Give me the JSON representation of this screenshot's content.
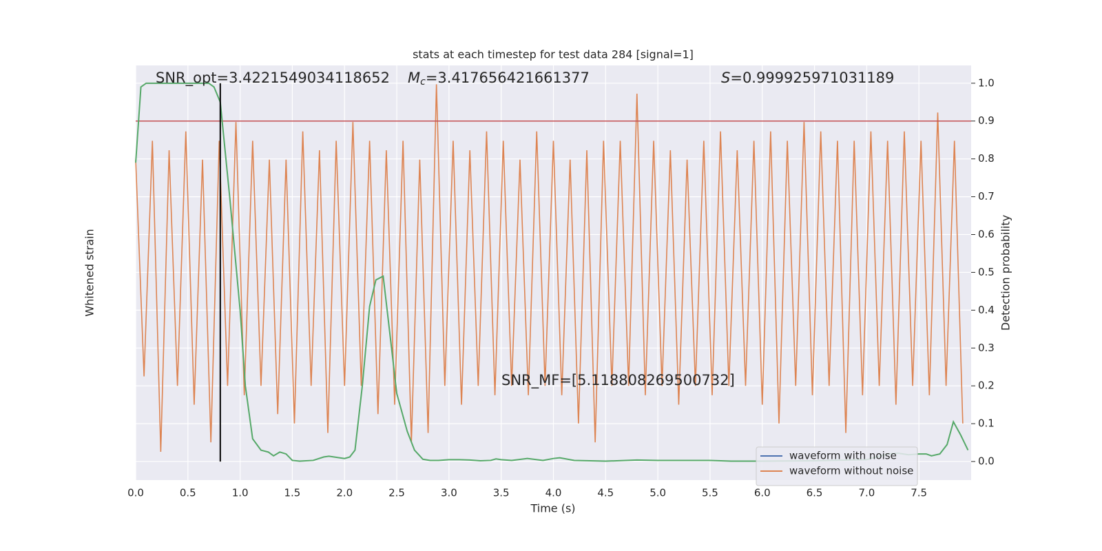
{
  "chart_data": {
    "type": "line",
    "title": "stats at each timestep for test data 284 [signal=1]",
    "xlabel": "Time (s)",
    "ylabel": "Whitened strain",
    "y2label": "Detection probability",
    "annotations": {
      "snr_opt": "SNR_opt=3.4221549034118652",
      "chirp_mass": {
        "symbol": "M",
        "subscript": "c",
        "text": "=3.417656421661377"
      },
      "score": {
        "symbol": "S",
        "text": "=0.999925971031189"
      },
      "snr_mf": "SNR_MF=[5.118808269500732]"
    },
    "xlim": [
      0,
      8
    ],
    "xticks": [
      {
        "value": 0,
        "label": "0.0"
      },
      0.5,
      {
        "value": 1,
        "label": "1.0"
      },
      1.5,
      {
        "value": 2,
        "label": "2.0"
      },
      2.5,
      {
        "value": 3,
        "label": "3.0"
      },
      3.5,
      {
        "value": 4,
        "label": "4.0"
      },
      4.5,
      {
        "value": 5,
        "label": "5.0"
      },
      5.5,
      {
        "value": 6,
        "label": "6.0"
      },
      6.5,
      {
        "value": 7,
        "label": "7.0"
      },
      7.5
    ],
    "ylim": [
      -1.1,
      1.1
    ],
    "y2lim": [
      -0.049,
      1.047
    ],
    "y2ticks": [
      {
        "value": 0,
        "label": "0.0"
      },
      0.1,
      0.2,
      0.3,
      0.4,
      0.5,
      0.6,
      0.7,
      0.8,
      0.9,
      {
        "value": 1,
        "label": "1.0"
      }
    ],
    "grid": true,
    "legend": "lower right",
    "threshold": {
      "value": 0.9,
      "color": "#c44e52"
    },
    "vline": {
      "value": 0.81,
      "color": "#000000"
    },
    "series": [
      {
        "name": "waveform with noise",
        "color": "#4c72b0"
      },
      {
        "name": "waveform without noise",
        "color": "#dd8452",
        "x": [
          0,
          0.08,
          0.16,
          0.24,
          0.32,
          0.4,
          0.48,
          0.56,
          0.64,
          0.72,
          0.8,
          0.88,
          0.96,
          1.04,
          1.12,
          1.2,
          1.28,
          1.36,
          1.44,
          1.52,
          1.6,
          1.68,
          1.76,
          1.84,
          1.92,
          2,
          2.08,
          2.16,
          2.24,
          2.32,
          2.4,
          2.48,
          2.56,
          2.64,
          2.72,
          2.8,
          2.88,
          2.96,
          3.04,
          3.12,
          3.2,
          3.28,
          3.36,
          3.44,
          3.52,
          3.6,
          3.68,
          3.76,
          3.84,
          3.92,
          4,
          4.08,
          4.16,
          4.24,
          4.32,
          4.4,
          4.48,
          4.56,
          4.64,
          4.72,
          4.8,
          4.88,
          4.96,
          5.04,
          5.12,
          5.2,
          5.28,
          5.36,
          5.44,
          5.52,
          5.6,
          5.68,
          5.76,
          5.84,
          5.92,
          6,
          6.08,
          6.16,
          6.24,
          6.32,
          6.4,
          6.48,
          6.56,
          6.64,
          6.72,
          6.8,
          6.88,
          6.96,
          7.04,
          7.12,
          7.2,
          7.28,
          7.36,
          7.44,
          7.52,
          7.6,
          7.68,
          7.76,
          7.84,
          7.92
        ],
        "values": [
          0.6,
          -0.55,
          0.7,
          -0.95,
          0.65,
          -0.6,
          0.75,
          -0.7,
          0.6,
          -0.9,
          0.7,
          -0.6,
          0.8,
          -0.65,
          0.7,
          -0.6,
          0.6,
          -0.75,
          0.6,
          -0.8,
          0.75,
          -0.6,
          0.65,
          -0.85,
          0.7,
          -0.6,
          0.8,
          -0.6,
          0.7,
          -0.75,
          0.65,
          -0.7,
          0.7,
          -0.9,
          0.6,
          -0.85,
          1,
          -0.6,
          0.7,
          -0.7,
          0.65,
          -0.6,
          0.75,
          -0.65,
          0.7,
          -0.6,
          0.6,
          -0.65,
          0.75,
          -0.6,
          0.7,
          -0.65,
          0.6,
          -0.8,
          0.65,
          -0.9,
          0.7,
          -0.6,
          0.7,
          -0.6,
          0.95,
          -0.65,
          0.7,
          -0.6,
          0.65,
          -0.7,
          0.6,
          -0.6,
          0.7,
          -0.65,
          0.75,
          -0.6,
          0.65,
          -0.6,
          0.7,
          -0.7,
          0.75,
          -0.8,
          0.7,
          -0.6,
          0.8,
          -0.65,
          0.75,
          -0.6,
          0.7,
          -0.85,
          0.7,
          -0.65,
          0.75,
          -0.6,
          0.7,
          -0.7,
          0.75,
          -0.6,
          0.7,
          -0.65,
          0.85,
          -0.6,
          0.7,
          -0.8
        ]
      },
      {
        "color": "#55a868",
        "axis": "y2",
        "x": [
          0,
          0.05,
          0.1,
          0.2,
          0.3,
          0.4,
          0.5,
          0.6,
          0.7,
          0.75,
          0.81,
          0.9,
          1,
          1.05,
          1.12,
          1.2,
          1.27,
          1.32,
          1.38,
          1.44,
          1.5,
          1.57,
          1.7,
          1.8,
          1.85,
          1.9,
          2,
          2.05,
          2.1,
          2.17,
          2.24,
          2.3,
          2.37,
          2.45,
          2.5,
          2.6,
          2.67,
          2.75,
          2.82,
          2.9,
          3,
          3.1,
          3.2,
          3.3,
          3.4,
          3.45,
          3.5,
          3.6,
          3.75,
          3.9,
          4,
          4.06,
          4.2,
          4.5,
          4.8,
          5,
          5.5,
          5.7,
          6,
          6.5,
          7,
          7.2,
          7.3,
          7.4,
          7.5,
          7.57,
          7.62,
          7.7,
          7.77,
          7.83,
          7.9,
          7.97
        ],
        "values": [
          0.79,
          0.99,
          1,
          1,
          1,
          1,
          1,
          1,
          1,
          0.99,
          0.95,
          0.7,
          0.4,
          0.2,
          0.06,
          0.03,
          0.025,
          0.015,
          0.025,
          0.02,
          0.003,
          0.001,
          0.003,
          0.012,
          0.014,
          0.012,
          0.008,
          0.012,
          0.03,
          0.2,
          0.41,
          0.48,
          0.49,
          0.3,
          0.18,
          0.08,
          0.03,
          0.006,
          0.003,
          0.003,
          0.005,
          0.005,
          0.004,
          0.002,
          0.003,
          0.007,
          0.005,
          0.003,
          0.008,
          0.003,
          0.008,
          0.01,
          0.003,
          0.001,
          0.004,
          0.003,
          0.003,
          0.001,
          0.001,
          0.002,
          0.005,
          0.02,
          0.022,
          0.018,
          0.02,
          0.02,
          0.015,
          0.02,
          0.045,
          0.105,
          0.07,
          0.03
        ]
      }
    ]
  }
}
